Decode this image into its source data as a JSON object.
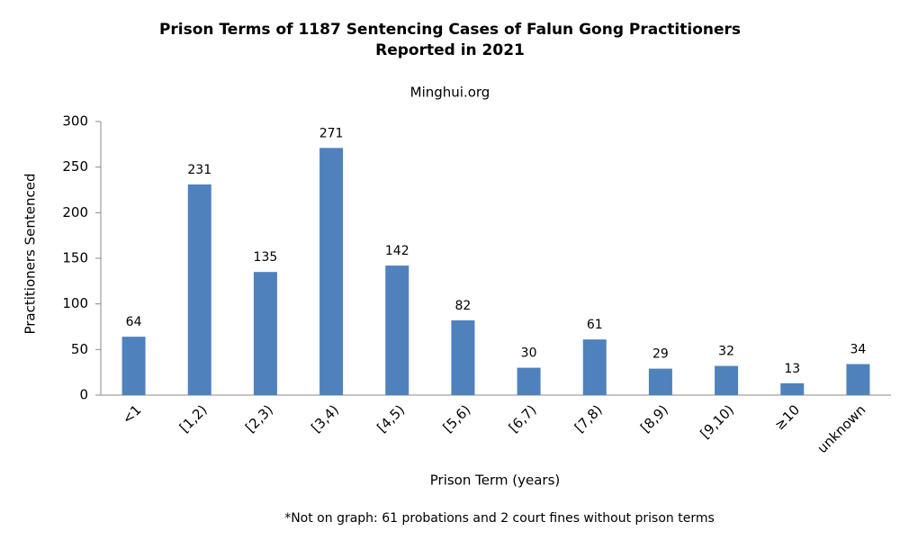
{
  "chart_data": {
    "type": "bar",
    "title": [
      "Prison Terms of 1187 Sentencing Cases of Falun Gong Practitioners",
      "Reported in 2021"
    ],
    "subtitle": "Minghui.org",
    "x_label": "Prison Term (years)",
    "y_label": "Practitioners Sentenced",
    "footnote": "*Not on graph: 61 probations and 2 court fines without prison terms",
    "categories": [
      "<1",
      "[1,2)",
      "[2,3)",
      "[3,4)",
      "[4,5)",
      "[5,6)",
      "[6,7)",
      "[7,8)",
      "[8,9)",
      "[9,10)",
      "≥10",
      "unknown"
    ],
    "values": [
      64,
      231,
      135,
      271,
      142,
      82,
      30,
      61,
      29,
      32,
      13,
      34
    ],
    "color": "#4f81bd",
    "ylim": [
      0,
      300
    ],
    "yticks": [
      0,
      50,
      100,
      150,
      200,
      250,
      300
    ],
    "grid": false
  }
}
